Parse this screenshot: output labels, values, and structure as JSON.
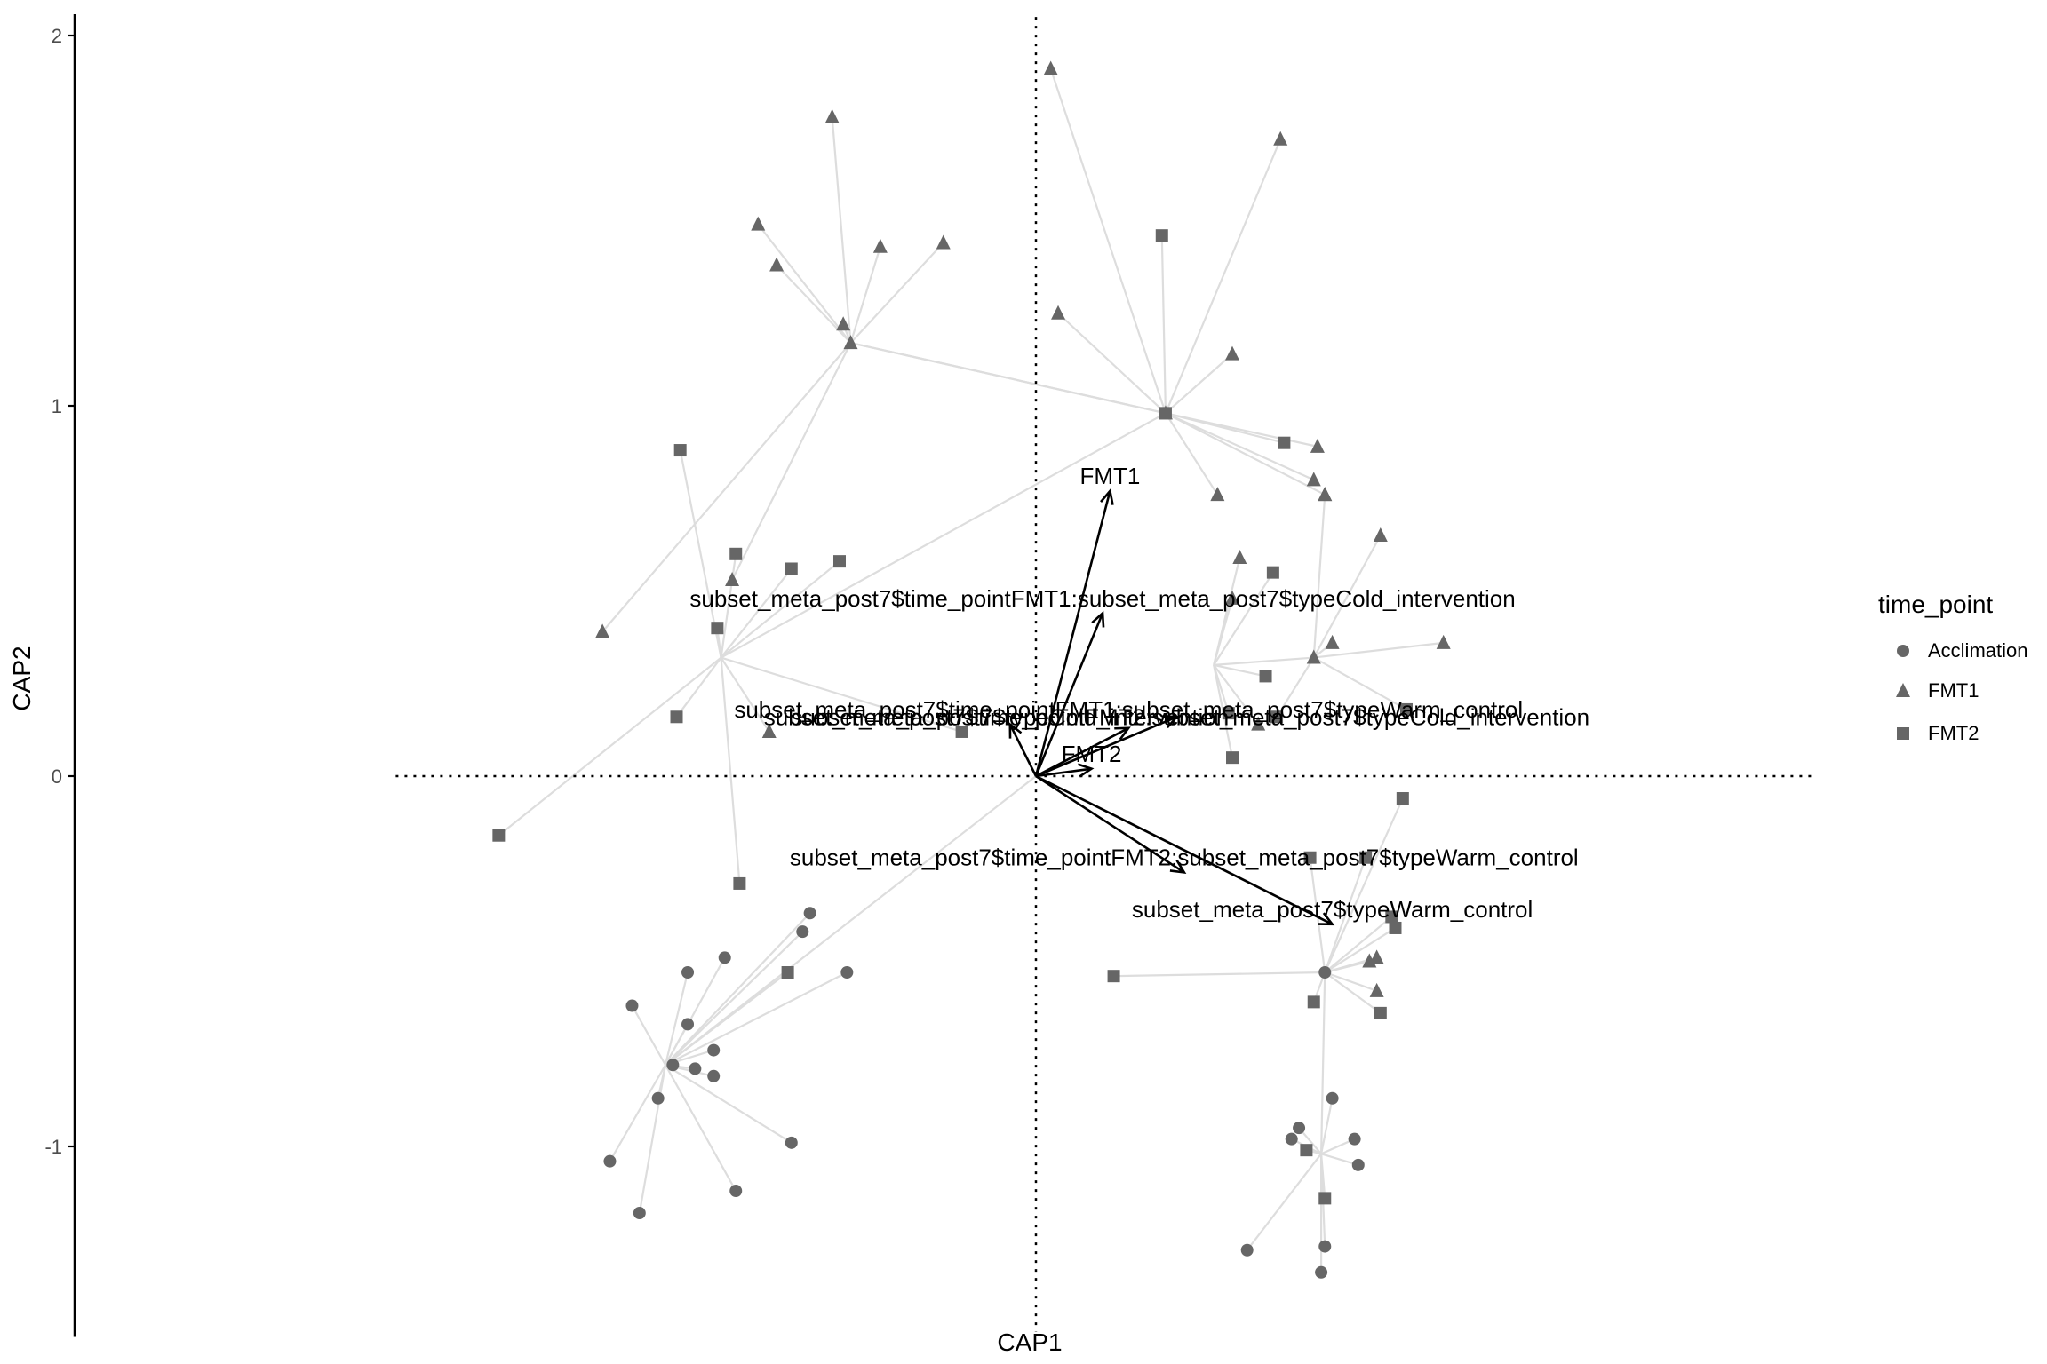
{
  "chart_data": {
    "type": "scatter",
    "title": "",
    "xlabel": "CAP1",
    "ylabel": "CAP2",
    "xlim": [
      -1.8,
      2.1
    ],
    "ylim": [
      -1.5,
      2.05
    ],
    "yticks": [
      -1,
      0,
      1,
      2
    ],
    "grid": false,
    "reference_lines": [
      {
        "axis": "x",
        "value": 0,
        "style": "dotted"
      },
      {
        "axis": "y",
        "value": 0,
        "style": "dotted"
      }
    ],
    "legend": {
      "title": "time_point",
      "placement": "right",
      "entries": [
        {
          "label": "Acclimation",
          "shape": "circle"
        },
        {
          "label": "FMT1",
          "shape": "triangle"
        },
        {
          "label": "FMT2",
          "shape": "square"
        }
      ]
    },
    "colors": {
      "points": "#666666",
      "spider": "#dddddd",
      "arrows": "#000000",
      "axis": "#000000"
    },
    "groups": [
      {
        "centroid": [
          -0.5,
          1.17
        ],
        "points": [
          {
            "x": -0.55,
            "y": 1.78,
            "s": "FMT1"
          },
          {
            "x": -0.75,
            "y": 1.49,
            "s": "FMT1"
          },
          {
            "x": -0.7,
            "y": 1.38,
            "s": "FMT1"
          },
          {
            "x": -0.42,
            "y": 1.43,
            "s": "FMT1"
          },
          {
            "x": -0.25,
            "y": 1.44,
            "s": "FMT1"
          },
          {
            "x": -0.52,
            "y": 1.22,
            "s": "FMT1"
          },
          {
            "x": -1.17,
            "y": 0.39,
            "s": "FMT1"
          },
          {
            "x": -0.82,
            "y": 0.53,
            "s": "FMT1"
          },
          {
            "x": 0.35,
            "y": 0.98,
            "s": "FMT1"
          }
        ]
      },
      {
        "centroid": [
          0.35,
          0.98
        ],
        "points": [
          {
            "x": 0.04,
            "y": 1.91,
            "s": "FMT1"
          },
          {
            "x": 0.66,
            "y": 1.72,
            "s": "FMT1"
          },
          {
            "x": 0.34,
            "y": 1.46,
            "s": "FMT2"
          },
          {
            "x": 0.06,
            "y": 1.25,
            "s": "FMT1"
          },
          {
            "x": 0.53,
            "y": 1.14,
            "s": "FMT1"
          },
          {
            "x": 0.67,
            "y": 0.9,
            "s": "FMT2"
          },
          {
            "x": 0.76,
            "y": 0.89,
            "s": "FMT1"
          },
          {
            "x": 0.75,
            "y": 0.8,
            "s": "FMT1"
          },
          {
            "x": 0.78,
            "y": 0.76,
            "s": "FMT1"
          },
          {
            "x": 0.49,
            "y": 0.76,
            "s": "FMT1"
          },
          {
            "x": -0.5,
            "y": 1.17,
            "s": "FMT1"
          }
        ]
      },
      {
        "centroid": [
          -0.85,
          0.32
        ],
        "points": [
          {
            "x": -0.96,
            "y": 0.88,
            "s": "FMT2"
          },
          {
            "x": -0.81,
            "y": 0.6,
            "s": "FMT2"
          },
          {
            "x": -0.66,
            "y": 0.56,
            "s": "FMT2"
          },
          {
            "x": -0.53,
            "y": 0.58,
            "s": "FMT2"
          },
          {
            "x": -0.86,
            "y": 0.4,
            "s": "FMT2"
          },
          {
            "x": -0.97,
            "y": 0.16,
            "s": "FMT2"
          },
          {
            "x": -1.45,
            "y": -0.16,
            "s": "FMT2"
          },
          {
            "x": -0.8,
            "y": -0.29,
            "s": "FMT2"
          },
          {
            "x": -0.72,
            "y": 0.12,
            "s": "FMT1"
          },
          {
            "x": -0.2,
            "y": 0.12,
            "s": "FMT2"
          },
          {
            "x": 0.35,
            "y": 0.98,
            "s": "FMT2"
          }
        ]
      },
      {
        "centroid": [
          0.48,
          0.3
        ],
        "points": [
          {
            "x": 0.55,
            "y": 0.59,
            "s": "FMT1"
          },
          {
            "x": 0.64,
            "y": 0.55,
            "s": "FMT2"
          },
          {
            "x": 0.53,
            "y": 0.48,
            "s": "FMT1"
          },
          {
            "x": 0.62,
            "y": 0.27,
            "s": "FMT2"
          },
          {
            "x": 0.6,
            "y": 0.14,
            "s": "FMT1"
          },
          {
            "x": 0.53,
            "y": 0.05,
            "s": "FMT2"
          },
          {
            "x": 0.52,
            "y": 0.17,
            "s": "FMT2"
          },
          {
            "x": 0.75,
            "y": 0.32,
            "s": "FMT1"
          }
        ]
      },
      {
        "centroid": [
          0.75,
          0.32
        ],
        "points": [
          {
            "x": 0.93,
            "y": 0.65,
            "s": "FMT1"
          },
          {
            "x": 1.1,
            "y": 0.36,
            "s": "FMT1"
          },
          {
            "x": 0.8,
            "y": 0.36,
            "s": "FMT1"
          },
          {
            "x": 0.78,
            "y": 0.76,
            "s": "FMT1"
          },
          {
            "x": 0.65,
            "y": 0.16,
            "s": "FMT2"
          },
          {
            "x": 1.0,
            "y": 0.18,
            "s": "FMT2"
          }
        ]
      },
      {
        "centroid": [
          0.78,
          -0.53
        ],
        "points": [
          {
            "x": 0.99,
            "y": -0.06,
            "s": "FMT2"
          },
          {
            "x": 0.89,
            "y": -0.22,
            "s": "FMT2"
          },
          {
            "x": 0.92,
            "y": -0.49,
            "s": "FMT1"
          },
          {
            "x": 0.96,
            "y": -0.38,
            "s": "FMT2"
          },
          {
            "x": 0.9,
            "y": -0.5,
            "s": "FMT1"
          },
          {
            "x": 0.92,
            "y": -0.58,
            "s": "FMT1"
          },
          {
            "x": 0.93,
            "y": -0.64,
            "s": "FMT2"
          },
          {
            "x": 0.75,
            "y": -0.61,
            "s": "FMT2"
          },
          {
            "x": 0.21,
            "y": -0.54,
            "s": "FMT2"
          },
          {
            "x": 0.74,
            "y": -0.22,
            "s": "FMT2"
          },
          {
            "x": 0.97,
            "y": -0.41,
            "s": "FMT2"
          }
        ]
      },
      {
        "centroid": [
          -1.0,
          -0.78
        ],
        "points": [
          {
            "x": -1.09,
            "y": -0.62,
            "s": "Acclimation"
          },
          {
            "x": -0.94,
            "y": -0.53,
            "s": "Acclimation"
          },
          {
            "x": -0.94,
            "y": -0.67,
            "s": "Acclimation"
          },
          {
            "x": -0.84,
            "y": -0.49,
            "s": "Acclimation"
          },
          {
            "x": -0.61,
            "y": -0.37,
            "s": "Acclimation"
          },
          {
            "x": -0.63,
            "y": -0.42,
            "s": "Acclimation"
          },
          {
            "x": -0.51,
            "y": -0.53,
            "s": "Acclimation"
          },
          {
            "x": -0.87,
            "y": -0.74,
            "s": "Acclimation"
          },
          {
            "x": -0.92,
            "y": -0.79,
            "s": "Acclimation"
          },
          {
            "x": -0.87,
            "y": -0.81,
            "s": "Acclimation"
          },
          {
            "x": -1.02,
            "y": -0.87,
            "s": "Acclimation"
          },
          {
            "x": -0.66,
            "y": -0.99,
            "s": "Acclimation"
          },
          {
            "x": -1.15,
            "y": -1.04,
            "s": "Acclimation"
          },
          {
            "x": -1.07,
            "y": -1.18,
            "s": "Acclimation"
          },
          {
            "x": -0.81,
            "y": -1.12,
            "s": "Acclimation"
          },
          {
            "x": -0.98,
            "y": -0.78,
            "s": "Acclimation"
          },
          {
            "x": -0.67,
            "y": -0.53,
            "s": "FMT2"
          },
          {
            "x": 0.0,
            "y": 0.0,
            "s": "Acclimation"
          }
        ]
      },
      {
        "centroid": [
          0.77,
          -1.02
        ],
        "points": [
          {
            "x": 0.8,
            "y": -0.87,
            "s": "Acclimation"
          },
          {
            "x": 0.71,
            "y": -0.95,
            "s": "Acclimation"
          },
          {
            "x": 0.69,
            "y": -0.98,
            "s": "Acclimation"
          },
          {
            "x": 0.73,
            "y": -1.01,
            "s": "FMT2"
          },
          {
            "x": 0.86,
            "y": -0.98,
            "s": "Acclimation"
          },
          {
            "x": 0.87,
            "y": -1.05,
            "s": "Acclimation"
          },
          {
            "x": 0.78,
            "y": -1.14,
            "s": "FMT2"
          },
          {
            "x": 0.78,
            "y": -1.27,
            "s": "Acclimation"
          },
          {
            "x": 0.57,
            "y": -1.28,
            "s": "Acclimation"
          },
          {
            "x": 0.77,
            "y": -1.34,
            "s": "Acclimation"
          },
          {
            "x": 0.78,
            "y": -0.53,
            "s": "Acclimation"
          }
        ]
      }
    ],
    "arrows": [
      {
        "label": "FMT1",
        "x": 0.2,
        "y": 0.77,
        "label_x": 0.2,
        "label_y": 0.81
      },
      {
        "label": "subset_meta_post7$time_pointFMT1:subset_meta_post7$typeCold_intervention",
        "x": 0.18,
        "y": 0.44,
        "label_x": 0.18,
        "label_y": 0.48
      },
      {
        "label": "subset_meta_post7$time_pointFMT2:subset_meta_post7$typeCold_intervention",
        "x": 0.38,
        "y": 0.16,
        "label_x": 0.38,
        "label_y": 0.16
      },
      {
        "label": "subset_meta_post7$time_pointFMT1:subset_meta_post7$typeWarm_control",
        "x": 0.25,
        "y": 0.13,
        "label_x": 0.25,
        "label_y": 0.18
      },
      {
        "label": "subset_meta_post7$typeCold_intervention",
        "x": -0.07,
        "y": 0.14,
        "label_x": -0.07,
        "label_y": 0.16
      },
      {
        "label": "FMT2",
        "x": 0.15,
        "y": 0.02,
        "label_x": 0.15,
        "label_y": 0.06
      },
      {
        "label": "subset_meta_post7$time_pointFMT2:subset_meta_post7$typeWarm_control",
        "x": 0.4,
        "y": -0.26,
        "label_x": 0.4,
        "label_y": -0.22
      },
      {
        "label": "subset_meta_post7$typeWarm_control",
        "x": 0.8,
        "y": -0.4,
        "label_x": 0.8,
        "label_y": -0.36
      }
    ]
  }
}
